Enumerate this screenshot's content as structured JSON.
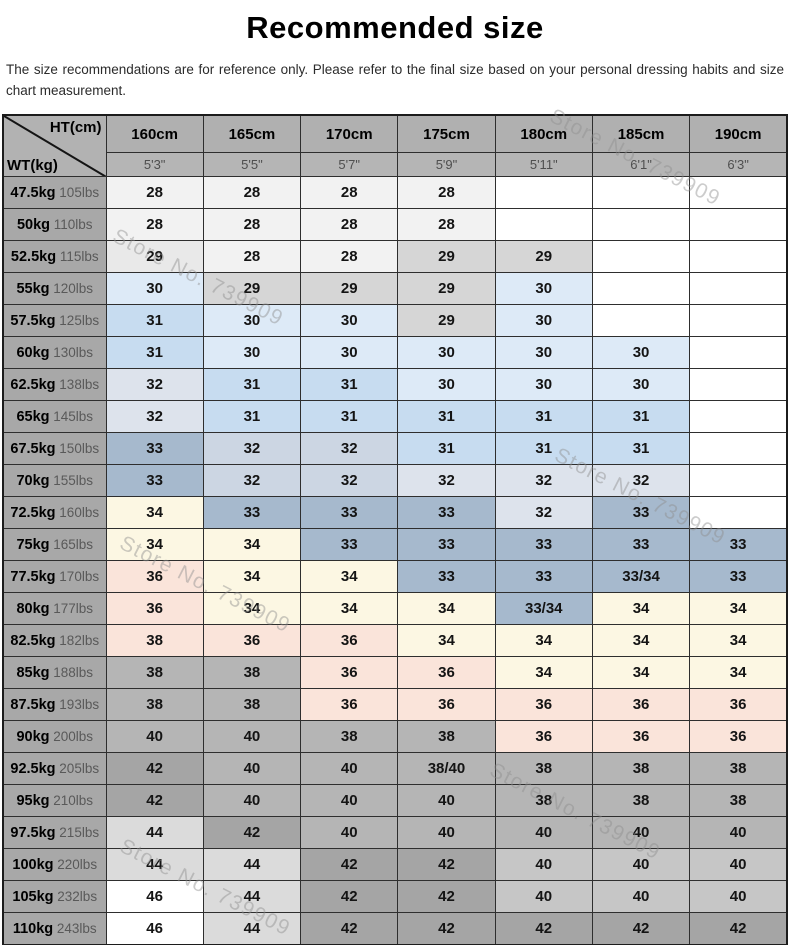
{
  "page": {
    "title": "Recommended size",
    "disclaimer": "The size recommendations are for reference only. Please refer to the final size based on your personal dressing habits and size chart measurement.",
    "watermark_text": "Store No. 739909"
  },
  "chart_data": {
    "type": "table",
    "title": "Recommended size",
    "corner": {
      "top_label": "HT(cm)",
      "left_label": "WT(kg)"
    },
    "columns_cm": [
      "160cm",
      "165cm",
      "170cm",
      "175cm",
      "180cm",
      "185cm",
      "190cm"
    ],
    "columns_ft": [
      "5'3\"",
      "5'5\"",
      "5'7\"",
      "5'9\"",
      "5'11\"",
      "6'1\"",
      "6'3\""
    ],
    "palette": {
      "w": "#ffffff",
      "g1": "#f2f2f2",
      "g2": "#e9e9e9",
      "g3": "#d6d6d6",
      "b1": "#ddeaf7",
      "b2": "#c7dcf0",
      "b3": "#dde3ec",
      "b4": "#ccd6e3",
      "b5": "#a6b9cd",
      "c": "#fcf7e3",
      "p": "#fae4da",
      "g4": "#b5b5b5",
      "g5": "#a5a5a5",
      "g6": "#dbdbdb",
      "g7": "#c6c6c6"
    },
    "rows": [
      {
        "kg": "47.5kg",
        "lbs": "105lbs",
        "cells": [
          {
            "v": "28",
            "c": "g1"
          },
          {
            "v": "28",
            "c": "g1"
          },
          {
            "v": "28",
            "c": "g1"
          },
          {
            "v": "28",
            "c": "g1"
          },
          {
            "v": "",
            "c": "w"
          },
          {
            "v": "",
            "c": "w"
          },
          {
            "v": "",
            "c": "w"
          }
        ]
      },
      {
        "kg": "50kg",
        "lbs": "110lbs",
        "cells": [
          {
            "v": "28",
            "c": "g1"
          },
          {
            "v": "28",
            "c": "g1"
          },
          {
            "v": "28",
            "c": "g1"
          },
          {
            "v": "28",
            "c": "g1"
          },
          {
            "v": "",
            "c": "w"
          },
          {
            "v": "",
            "c": "w"
          },
          {
            "v": "",
            "c": "w"
          }
        ]
      },
      {
        "kg": "52.5kg",
        "lbs": "115lbs",
        "cells": [
          {
            "v": "29",
            "c": "g2"
          },
          {
            "v": "28",
            "c": "g1"
          },
          {
            "v": "28",
            "c": "g1"
          },
          {
            "v": "29",
            "c": "g3"
          },
          {
            "v": "29",
            "c": "g3"
          },
          {
            "v": "",
            "c": "w"
          },
          {
            "v": "",
            "c": "w"
          }
        ]
      },
      {
        "kg": "55kg",
        "lbs": "120lbs",
        "cells": [
          {
            "v": "30",
            "c": "b1"
          },
          {
            "v": "29",
            "c": "g3"
          },
          {
            "v": "29",
            "c": "g3"
          },
          {
            "v": "29",
            "c": "g3"
          },
          {
            "v": "30",
            "c": "b1"
          },
          {
            "v": "",
            "c": "w"
          },
          {
            "v": "",
            "c": "w"
          }
        ]
      },
      {
        "kg": "57.5kg",
        "lbs": "125lbs",
        "cells": [
          {
            "v": "31",
            "c": "b2"
          },
          {
            "v": "30",
            "c": "b1"
          },
          {
            "v": "30",
            "c": "b1"
          },
          {
            "v": "29",
            "c": "g3"
          },
          {
            "v": "30",
            "c": "b1"
          },
          {
            "v": "",
            "c": "w"
          },
          {
            "v": "",
            "c": "w"
          }
        ]
      },
      {
        "kg": "60kg",
        "lbs": "130lbs",
        "cells": [
          {
            "v": "31",
            "c": "b2"
          },
          {
            "v": "30",
            "c": "b1"
          },
          {
            "v": "30",
            "c": "b1"
          },
          {
            "v": "30",
            "c": "b1"
          },
          {
            "v": "30",
            "c": "b1"
          },
          {
            "v": "30",
            "c": "b1"
          },
          {
            "v": "",
            "c": "w"
          }
        ]
      },
      {
        "kg": "62.5kg",
        "lbs": "138lbs",
        "cells": [
          {
            "v": "32",
            "c": "b3"
          },
          {
            "v": "31",
            "c": "b2"
          },
          {
            "v": "31",
            "c": "b2"
          },
          {
            "v": "30",
            "c": "b1"
          },
          {
            "v": "30",
            "c": "b1"
          },
          {
            "v": "30",
            "c": "b1"
          },
          {
            "v": "",
            "c": "w"
          }
        ]
      },
      {
        "kg": "65kg",
        "lbs": "145lbs",
        "cells": [
          {
            "v": "32",
            "c": "b3"
          },
          {
            "v": "31",
            "c": "b2"
          },
          {
            "v": "31",
            "c": "b2"
          },
          {
            "v": "31",
            "c": "b2"
          },
          {
            "v": "31",
            "c": "b2"
          },
          {
            "v": "31",
            "c": "b2"
          },
          {
            "v": "",
            "c": "w"
          }
        ]
      },
      {
        "kg": "67.5kg",
        "lbs": "150lbs",
        "cells": [
          {
            "v": "33",
            "c": "b5"
          },
          {
            "v": "32",
            "c": "b4"
          },
          {
            "v": "32",
            "c": "b4"
          },
          {
            "v": "31",
            "c": "b2"
          },
          {
            "v": "31",
            "c": "b2"
          },
          {
            "v": "31",
            "c": "b2"
          },
          {
            "v": "",
            "c": "w"
          }
        ]
      },
      {
        "kg": "70kg",
        "lbs": "155lbs",
        "cells": [
          {
            "v": "33",
            "c": "b5"
          },
          {
            "v": "32",
            "c": "b4"
          },
          {
            "v": "32",
            "c": "b4"
          },
          {
            "v": "32",
            "c": "b3"
          },
          {
            "v": "32",
            "c": "b3"
          },
          {
            "v": "32",
            "c": "b3"
          },
          {
            "v": "",
            "c": "w"
          }
        ]
      },
      {
        "kg": "72.5kg",
        "lbs": "160lbs",
        "cells": [
          {
            "v": "34",
            "c": "c"
          },
          {
            "v": "33",
            "c": "b5"
          },
          {
            "v": "33",
            "c": "b5"
          },
          {
            "v": "33",
            "c": "b5"
          },
          {
            "v": "32",
            "c": "b3"
          },
          {
            "v": "33",
            "c": "b5"
          },
          {
            "v": "",
            "c": "w"
          }
        ]
      },
      {
        "kg": "75kg",
        "lbs": "165lbs",
        "cells": [
          {
            "v": "34",
            "c": "c"
          },
          {
            "v": "34",
            "c": "c"
          },
          {
            "v": "33",
            "c": "b5"
          },
          {
            "v": "33",
            "c": "b5"
          },
          {
            "v": "33",
            "c": "b5"
          },
          {
            "v": "33",
            "c": "b5"
          },
          {
            "v": "33",
            "c": "b5"
          }
        ]
      },
      {
        "kg": "77.5kg",
        "lbs": "170lbs",
        "cells": [
          {
            "v": "36",
            "c": "p"
          },
          {
            "v": "34",
            "c": "c"
          },
          {
            "v": "34",
            "c": "c"
          },
          {
            "v": "33",
            "c": "b5"
          },
          {
            "v": "33",
            "c": "b5"
          },
          {
            "v": "33/34",
            "c": "b5"
          },
          {
            "v": "33",
            "c": "b5"
          }
        ]
      },
      {
        "kg": "80kg",
        "lbs": "177lbs",
        "cells": [
          {
            "v": "36",
            "c": "p"
          },
          {
            "v": "34",
            "c": "c"
          },
          {
            "v": "34",
            "c": "c"
          },
          {
            "v": "34",
            "c": "c"
          },
          {
            "v": "33/34",
            "c": "b5"
          },
          {
            "v": "34",
            "c": "c"
          },
          {
            "v": "34",
            "c": "c"
          }
        ]
      },
      {
        "kg": "82.5kg",
        "lbs": "182lbs",
        "cells": [
          {
            "v": "38",
            "c": "p"
          },
          {
            "v": "36",
            "c": "p"
          },
          {
            "v": "36",
            "c": "p"
          },
          {
            "v": "34",
            "c": "c"
          },
          {
            "v": "34",
            "c": "c"
          },
          {
            "v": "34",
            "c": "c"
          },
          {
            "v": "34",
            "c": "c"
          }
        ]
      },
      {
        "kg": "85kg",
        "lbs": "188lbs",
        "cells": [
          {
            "v": "38",
            "c": "g4"
          },
          {
            "v": "38",
            "c": "g4"
          },
          {
            "v": "36",
            "c": "p"
          },
          {
            "v": "36",
            "c": "p"
          },
          {
            "v": "34",
            "c": "c"
          },
          {
            "v": "34",
            "c": "c"
          },
          {
            "v": "34",
            "c": "c"
          }
        ]
      },
      {
        "kg": "87.5kg",
        "lbs": "193lbs",
        "cells": [
          {
            "v": "38",
            "c": "g4"
          },
          {
            "v": "38",
            "c": "g4"
          },
          {
            "v": "36",
            "c": "p"
          },
          {
            "v": "36",
            "c": "p"
          },
          {
            "v": "36",
            "c": "p"
          },
          {
            "v": "36",
            "c": "p"
          },
          {
            "v": "36",
            "c": "p"
          }
        ]
      },
      {
        "kg": "90kg",
        "lbs": "200lbs",
        "cells": [
          {
            "v": "40",
            "c": "g4"
          },
          {
            "v": "40",
            "c": "g4"
          },
          {
            "v": "38",
            "c": "g4"
          },
          {
            "v": "38",
            "c": "g4"
          },
          {
            "v": "36",
            "c": "p"
          },
          {
            "v": "36",
            "c": "p"
          },
          {
            "v": "36",
            "c": "p"
          }
        ]
      },
      {
        "kg": "92.5kg",
        "lbs": "205lbs",
        "cells": [
          {
            "v": "42",
            "c": "g5"
          },
          {
            "v": "40",
            "c": "g4"
          },
          {
            "v": "40",
            "c": "g4"
          },
          {
            "v": "38/40",
            "c": "g4"
          },
          {
            "v": "38",
            "c": "g4"
          },
          {
            "v": "38",
            "c": "g4"
          },
          {
            "v": "38",
            "c": "g4"
          }
        ]
      },
      {
        "kg": "95kg",
        "lbs": "210lbs",
        "cells": [
          {
            "v": "42",
            "c": "g5"
          },
          {
            "v": "40",
            "c": "g4"
          },
          {
            "v": "40",
            "c": "g4"
          },
          {
            "v": "40",
            "c": "g4"
          },
          {
            "v": "38",
            "c": "g4"
          },
          {
            "v": "38",
            "c": "g4"
          },
          {
            "v": "38",
            "c": "g4"
          }
        ]
      },
      {
        "kg": "97.5kg",
        "lbs": "215lbs",
        "cells": [
          {
            "v": "44",
            "c": "g6"
          },
          {
            "v": "42",
            "c": "g5"
          },
          {
            "v": "40",
            "c": "g4"
          },
          {
            "v": "40",
            "c": "g4"
          },
          {
            "v": "40",
            "c": "g4"
          },
          {
            "v": "40",
            "c": "g4"
          },
          {
            "v": "40",
            "c": "g4"
          }
        ]
      },
      {
        "kg": "100kg",
        "lbs": "220lbs",
        "cells": [
          {
            "v": "44",
            "c": "g6"
          },
          {
            "v": "44",
            "c": "g6"
          },
          {
            "v": "42",
            "c": "g5"
          },
          {
            "v": "42",
            "c": "g5"
          },
          {
            "v": "40",
            "c": "g7"
          },
          {
            "v": "40",
            "c": "g7"
          },
          {
            "v": "40",
            "c": "g7"
          }
        ]
      },
      {
        "kg": "105kg",
        "lbs": "232lbs",
        "cells": [
          {
            "v": "46",
            "c": "w"
          },
          {
            "v": "44",
            "c": "g6"
          },
          {
            "v": "42",
            "c": "g5"
          },
          {
            "v": "42",
            "c": "g5"
          },
          {
            "v": "40",
            "c": "g7"
          },
          {
            "v": "40",
            "c": "g7"
          },
          {
            "v": "40",
            "c": "g7"
          }
        ]
      },
      {
        "kg": "110kg",
        "lbs": "243lbs",
        "cells": [
          {
            "v": "46",
            "c": "w"
          },
          {
            "v": "44",
            "c": "g6"
          },
          {
            "v": "42",
            "c": "g5"
          },
          {
            "v": "42",
            "c": "g5"
          },
          {
            "v": "42",
            "c": "g5"
          },
          {
            "v": "42",
            "c": "g5"
          },
          {
            "v": "42",
            "c": "g5"
          }
        ]
      }
    ]
  }
}
